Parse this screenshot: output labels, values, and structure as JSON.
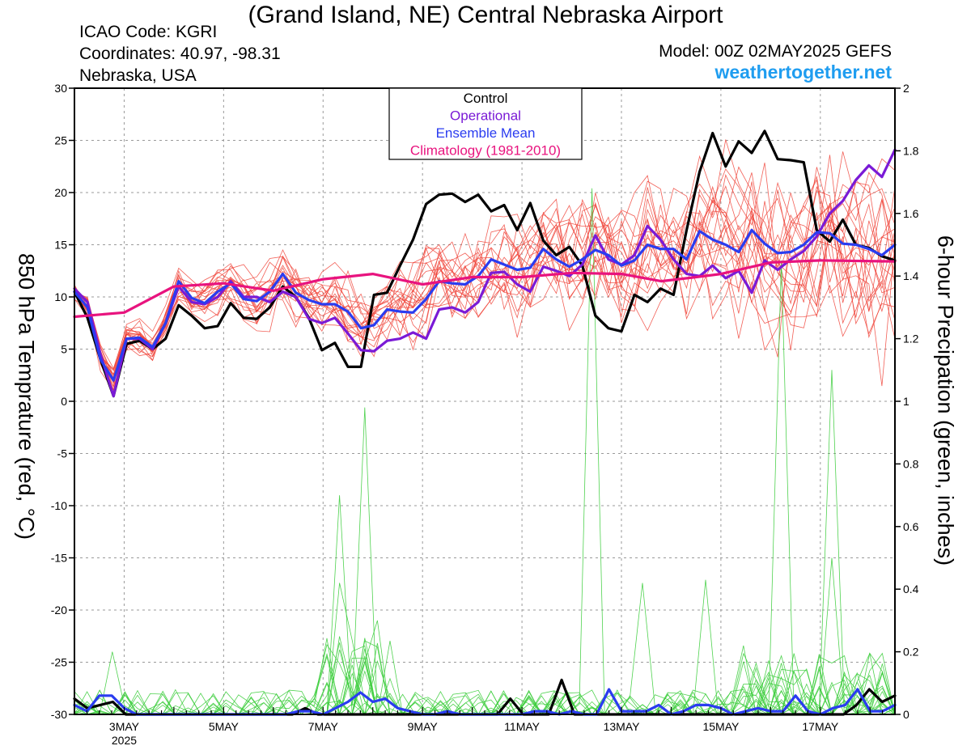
{
  "header": {
    "title": "(Grand Island, NE) Central Nebraska Airport",
    "icao": "ICAO Code: KGRI",
    "coordinates": "Coordinates: 40.97, -98.31",
    "region": "Nebraska, USA",
    "model": "Model: 00Z 02MAY2025 GEFS",
    "site": "weathertogether.net"
  },
  "colors": {
    "control": "#000000",
    "operational": "#7a1ad6",
    "ensemble_mean": "#2a3cf0",
    "climatology": "#e8137e",
    "members_temp": "#f0443a",
    "members_precip": "#3ccd3c",
    "site": "#1f9df0"
  },
  "chart_data": {
    "type": "line",
    "ylabel": "850 hPa Temprature (red, °C)",
    "ylabel_right": "6-hour Precipation (green, inches)",
    "ylim": [
      -30,
      30
    ],
    "yticks": [
      30,
      25,
      20,
      15,
      10,
      5,
      0,
      -5,
      -10,
      -15,
      -20,
      -25,
      -30
    ],
    "ylim_right": [
      0,
      2
    ],
    "yticks_right": [
      "2",
      "1.8",
      "1.6",
      "1.4",
      "1.2",
      "1",
      "0.8",
      "0.6",
      "0.4",
      "0.2",
      "0"
    ],
    "xlim": [
      1.0,
      17.5
    ],
    "xticks": [
      {
        "x": 2,
        "label": "3MAY",
        "sub": "2025"
      },
      {
        "x": 4,
        "label": "5MAY",
        "sub": ""
      },
      {
        "x": 6,
        "label": "7MAY",
        "sub": ""
      },
      {
        "x": 8,
        "label": "9MAY",
        "sub": ""
      },
      {
        "x": 10,
        "label": "11MAY",
        "sub": ""
      },
      {
        "x": 12,
        "label": "13MAY",
        "sub": ""
      },
      {
        "x": 14,
        "label": "15MAY",
        "sub": ""
      },
      {
        "x": 16,
        "label": "17MAY",
        "sub": ""
      }
    ],
    "grid": true,
    "legend": {
      "position": "top-center",
      "entries": [
        {
          "label": "Control",
          "color": "#000000"
        },
        {
          "label": "Operational",
          "color": "#7a1ad6"
        },
        {
          "label": "Ensemble Mean",
          "color": "#2a3cf0"
        },
        {
          "label": "Climatology (1981-2010)",
          "color": "#e8137e"
        }
      ]
    },
    "series": [
      {
        "name": "Control",
        "axis": "temp",
        "color": "#000000",
        "values": [
          10.5,
          8.0,
          4.0,
          0.5,
          5.5,
          5.8,
          5.0,
          6.0,
          9.2,
          8.2,
          7.0,
          7.2,
          9.4,
          8.0,
          7.9,
          9.0,
          11.0,
          10.0,
          8.0,
          4.9,
          5.6,
          3.3,
          3.3,
          10.2,
          10.4,
          13.0,
          15.5,
          18.9,
          19.8,
          19.9,
          19.1,
          19.8,
          18.2,
          18.8,
          16.4,
          19.0,
          15.4,
          14.0,
          14.8,
          13.0,
          8.2,
          7.0,
          6.7,
          10.2,
          9.5,
          10.8,
          10.2,
          16.4,
          22.0,
          25.7,
          22.5,
          24.9,
          23.8,
          25.9,
          23.2,
          23.1,
          22.9,
          16.4,
          15.3,
          17.4,
          15.0,
          14.7,
          13.9,
          13.5
        ]
      },
      {
        "name": "Operational",
        "axis": "temp",
        "color": "#7a1ad6",
        "values": [
          10.8,
          9.5,
          4.5,
          0.5,
          6.0,
          6.0,
          5.0,
          7.5,
          11.0,
          9.5,
          9.3,
          10.0,
          11.5,
          10.0,
          10.0,
          9.5,
          10.5,
          10.0,
          7.9,
          7.5,
          8.0,
          6.5,
          4.9,
          4.8,
          5.8,
          6.0,
          6.6,
          6.0,
          8.8,
          9.0,
          8.5,
          9.5,
          12.3,
          12.4,
          11.2,
          10.5,
          12.9,
          12.5,
          12.0,
          13.1,
          15.9,
          13.6,
          13.1,
          14.0,
          16.8,
          15.5,
          13.6,
          12.2,
          12.0,
          13.0,
          11.8,
          12.5,
          10.4,
          13.5,
          12.6,
          13.6,
          14.4,
          15.8,
          18.0,
          19.2,
          21.2,
          22.6,
          21.5,
          24.1
        ]
      },
      {
        "name": "Ensemble Mean",
        "axis": "temp",
        "color": "#2a3cf0",
        "values": [
          10.5,
          9.0,
          4.0,
          2.0,
          6.0,
          6.1,
          5.2,
          7.5,
          11.5,
          9.9,
          9.4,
          10.5,
          11.3,
          9.8,
          9.6,
          10.5,
          12.2,
          10.4,
          9.7,
          9.3,
          9.3,
          8.6,
          7.0,
          7.3,
          8.8,
          8.6,
          8.5,
          9.8,
          11.5,
          11.3,
          11.2,
          12.0,
          13.6,
          13.1,
          12.6,
          12.8,
          14.6,
          13.6,
          12.9,
          13.6,
          14.5,
          14.0,
          13.0,
          13.5,
          15.0,
          14.6,
          14.6,
          13.6,
          16.3,
          15.5,
          15.0,
          14.3,
          16.4,
          15.1,
          14.2,
          14.3,
          15.0,
          16.2,
          16.1,
          15.1,
          15.0,
          14.6,
          14.0,
          15.0
        ]
      },
      {
        "name": "Climatology (1981-2010)",
        "axis": "temp",
        "color": "#e8137e",
        "points": [
          [
            1.0,
            8.1
          ],
          [
            2.0,
            8.5
          ],
          [
            3.0,
            11.0
          ],
          [
            4.0,
            11.3
          ],
          [
            5.0,
            10.6
          ],
          [
            6.0,
            11.7
          ],
          [
            7.0,
            12.2
          ],
          [
            8.0,
            11.2
          ],
          [
            9.0,
            11.9
          ],
          [
            10.0,
            11.9
          ],
          [
            11.0,
            12.3
          ],
          [
            12.0,
            12.2
          ],
          [
            12.8,
            11.5
          ],
          [
            13.5,
            11.9
          ],
          [
            14.0,
            12.2
          ],
          [
            15.0,
            13.3
          ],
          [
            16.0,
            13.5
          ],
          [
            17.5,
            13.4
          ]
        ]
      },
      {
        "name": "Control",
        "axis": "precip",
        "color": "#000000",
        "values": [
          0.05,
          0.02,
          0.03,
          0.04,
          0.0,
          0.0,
          0.0,
          0.0,
          0.0,
          0.0,
          0.0,
          0.0,
          0.0,
          0.0,
          0.0,
          0.0,
          0.0,
          0.0,
          0.02,
          0.0,
          0.0,
          0.0,
          0.0,
          0.0,
          0.0,
          0.0,
          0.0,
          0.0,
          0.0,
          0.0,
          0.0,
          0.0,
          0.0,
          0.0,
          0.05,
          0.0,
          0.0,
          0.0,
          0.11,
          0.0,
          0.0,
          0.0,
          0.0,
          0.0,
          0.0,
          0.0,
          0.0,
          0.0,
          0.0,
          0.0,
          0.0,
          0.0,
          0.0,
          0.0,
          0.0,
          0.0,
          0.0,
          0.0,
          0.0,
          0.0,
          0.0,
          0.03,
          0.08,
          0.04,
          0.06
        ]
      },
      {
        "name": "Ensemble Mean",
        "axis": "precip",
        "color": "#2a3cf0",
        "values": [
          0.03,
          0.01,
          0.06,
          0.06,
          0.02,
          0.0,
          0.0,
          0.0,
          0.0,
          0.0,
          0.0,
          0.0,
          0.0,
          0.0,
          0.0,
          0.0,
          0.0,
          0.0,
          0.01,
          0.01,
          0.0,
          0.02,
          0.04,
          0.07,
          0.04,
          0.05,
          0.02,
          0.01,
          0.0,
          0.0,
          0.01,
          0.0,
          0.0,
          0.0,
          0.0,
          0.0,
          0.0,
          0.01,
          0.01,
          0.0,
          0.01,
          0.0,
          0.0,
          0.08,
          0.01,
          0.01,
          0.01,
          0.03,
          0.0,
          0.01,
          0.03,
          0.03,
          0.02,
          0.0,
          0.01,
          0.02,
          0.01,
          0.01,
          0.06,
          0.01,
          0.0,
          0.02,
          0.03,
          0.08,
          0.01,
          0.01,
          0.03
        ]
      }
    ]
  }
}
